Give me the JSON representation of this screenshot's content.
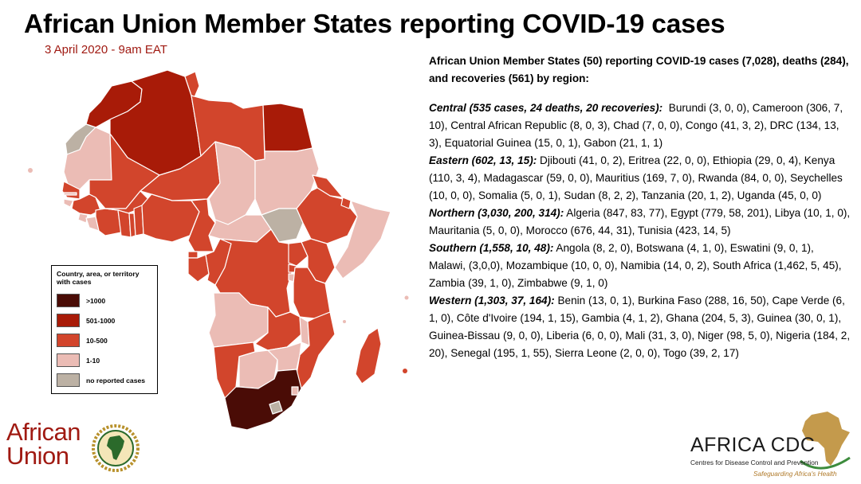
{
  "title": "African Union Member States reporting COVID-19 cases",
  "date": "3 April 2020 - 9am EAT",
  "legend": {
    "title": "Country, area, or territory with cases",
    "items": [
      {
        "label": ">1000",
        "color": "#4a0c06"
      },
      {
        "label": "501-1000",
        "color": "#a81b08"
      },
      {
        "label": "10-500",
        "color": "#d2452c"
      },
      {
        "label": "1-10",
        "color": "#ebbcb5"
      },
      {
        "label": "no reported cases",
        "color": "#bcb1a4"
      }
    ]
  },
  "summary": "African Union Member States (50) reporting COVID-19 cases (7,028), deaths (284), and recoveries (561) by region:",
  "regions": [
    {
      "heading": "Central (535 cases, 24 deaths, 20 recoveries):",
      "details": "Burundi (3, 0, 0), Cameroon (306, 7, 10), Central African Republic (8, 0, 3), Chad (7, 0, 0), Congo (41, 3, 2), DRC (134, 13, 3), Equatorial Guinea (15, 0, 1), Gabon (21, 1, 1)"
    },
    {
      "heading": "Eastern (602, 13, 15):",
      "details": "Djibouti (41, 0, 2), Eritrea (22, 0, 0), Ethiopia (29, 0, 4), Kenya (110, 3, 4), Madagascar (59, 0, 0), Mauritius (169, 7, 0), Rwanda (84, 0, 0), Seychelles (10, 0, 0), Somalia (5, 0, 1), Sudan (8, 2, 2), Tanzania (20, 1, 2), Uganda (45, 0, 0)"
    },
    {
      "heading": "Northern (3,030, 200, 314):",
      "details": "Algeria (847, 83, 77), Egypt (779, 58, 201), Libya (10, 1, 0), Mauritania (5, 0, 0), Morocco (676, 44, 31), Tunisia (423, 14, 5)"
    },
    {
      "heading": "Southern (1,558, 10, 48):",
      "details": "Angola (8, 2, 0), Botswana (4, 1, 0), Eswatini (9, 0, 1), Malawi, (3,0,0), Mozambique (10, 0, 0),  Namibia (14, 0, 2), South Africa (1,462, 5, 45), Zambia (39, 1, 0), Zimbabwe (9, 1, 0)"
    },
    {
      "heading": "Western (1,303, 37, 164):",
      "details": "Benin (13, 0, 1), Burkina Faso (288, 16, 50), Cape Verde (6, 1, 0), Côte d'Ivoire (194, 1, 15), Gambia (4, 1, 2), Ghana (204, 5, 3), Guinea (30, 0, 1), Guinea-Bissau (9, 0, 0), Liberia (6, 0, 0), Mali (31, 3, 0), Niger (98, 5, 0), Nigeria (184, 2, 20), Senegal (195, 1, 55), Sierra Leone (2, 0, 0), Togo (39, 2, 17)"
    }
  ],
  "logos": {
    "african_union": {
      "line1": "African",
      "line2": "Union",
      "icon": "au-emblem-icon"
    },
    "africa_cdc": {
      "name": "AFRICA CDC",
      "subtitle": "Centres for Disease Control and Prevention",
      "tagline": "Safeguarding Africa's Health",
      "icon": "africa-continent-icon"
    }
  }
}
